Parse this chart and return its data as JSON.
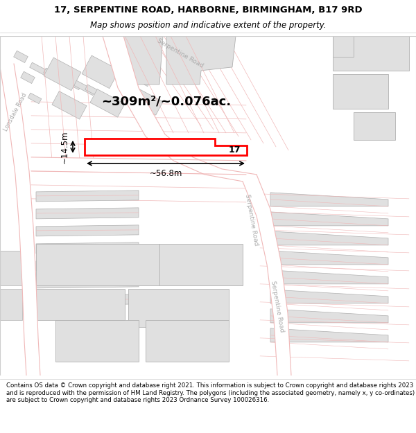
{
  "title_line1": "17, SERPENTINE ROAD, HARBORNE, BIRMINGHAM, B17 9RD",
  "title_line2": "Map shows position and indicative extent of the property.",
  "footer_text": "Contains OS data © Crown copyright and database right 2021. This information is subject to Crown copyright and database rights 2023 and is reproduced with the permission of HM Land Registry. The polygons (including the associated geometry, namely x, y co-ordinates) are subject to Crown copyright and database rights 2023 Ordnance Survey 100026316.",
  "area_label": "~309m²/~0.076ac.",
  "width_label": "~56.8m",
  "height_label": "~14.5m",
  "property_number": "17",
  "bg_color": "#f5f3f0",
  "title_fontsize": 9.5,
  "subtitle_fontsize": 8.5,
  "footer_fontsize": 6.2,
  "road_fill": "#ffffff",
  "road_line_color": "#f0b8b8",
  "road_outline_color": "#c8a0a0",
  "building_fill": "#e0e0e0",
  "building_outline": "#b0b0b0",
  "highlight_outline": "#ff0000",
  "highlight_fill": "#ffffff",
  "dim_color": "#000000",
  "label_color": "#aaaaaa",
  "serp_label": "Serpentine Road",
  "lons_label": "Lonsdale Road"
}
